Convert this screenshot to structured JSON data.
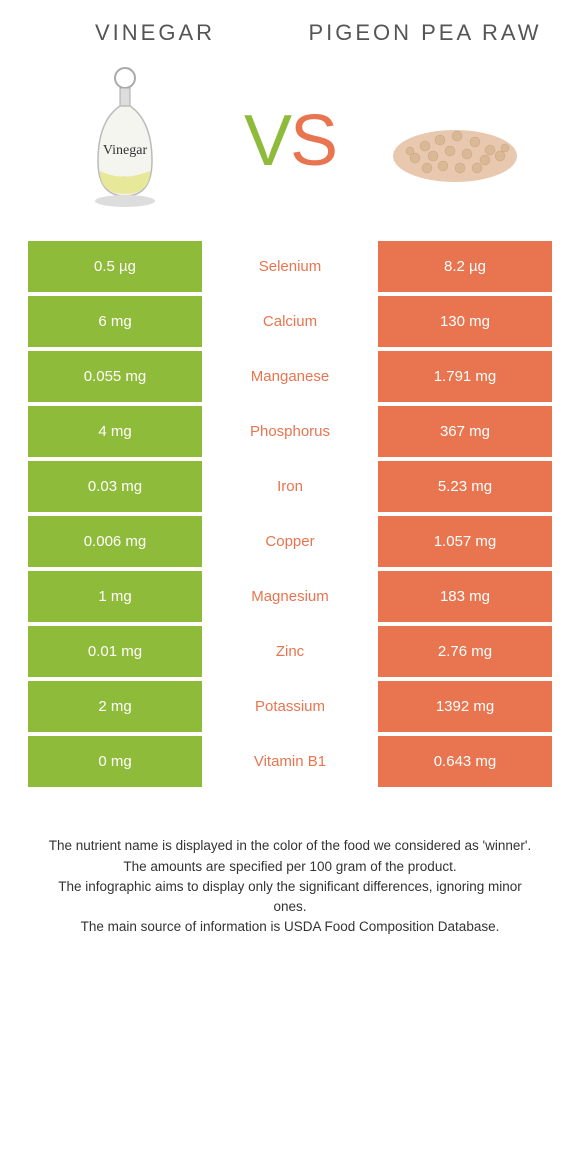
{
  "left_title": "Vinegar",
  "right_title": "Pigeon pea raw",
  "vs": {
    "v": "V",
    "s": "S"
  },
  "colors": {
    "left": "#8fbb3a",
    "right": "#e8754f",
    "mid_right": "#e8754f"
  },
  "rows": [
    {
      "left": "0.5 µg",
      "name": "Selenium",
      "right": "8.2 µg",
      "winner": "right"
    },
    {
      "left": "6 mg",
      "name": "Calcium",
      "right": "130 mg",
      "winner": "right"
    },
    {
      "left": "0.055 mg",
      "name": "Manganese",
      "right": "1.791 mg",
      "winner": "right"
    },
    {
      "left": "4 mg",
      "name": "Phosphorus",
      "right": "367 mg",
      "winner": "right"
    },
    {
      "left": "0.03 mg",
      "name": "Iron",
      "right": "5.23 mg",
      "winner": "right"
    },
    {
      "left": "0.006 mg",
      "name": "Copper",
      "right": "1.057 mg",
      "winner": "right"
    },
    {
      "left": "1 mg",
      "name": "Magnesium",
      "right": "183 mg",
      "winner": "right"
    },
    {
      "left": "0.01 mg",
      "name": "Zinc",
      "right": "2.76 mg",
      "winner": "right"
    },
    {
      "left": "2 mg",
      "name": "Potassium",
      "right": "1392 mg",
      "winner": "right"
    },
    {
      "left": "0 mg",
      "name": "Vitamin B1",
      "right": "0.643 mg",
      "winner": "right"
    }
  ],
  "footer_lines": [
    "The nutrient name is displayed in the color of the food we considered as 'winner'.",
    "The amounts are specified per 100 gram of the product.",
    "The infographic aims to display only the significant differences, ignoring minor ones.",
    "The main source of information is USDA Food Composition Database."
  ],
  "vinegar_label": "Vinegar"
}
